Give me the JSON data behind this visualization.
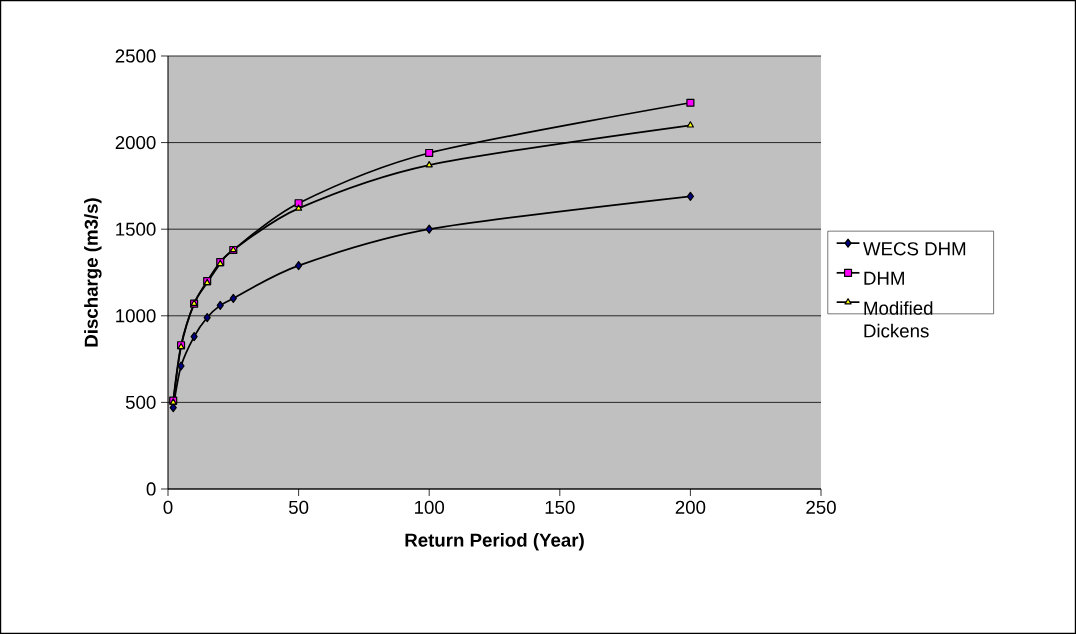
{
  "chart_data": {
    "type": "line",
    "xlabel": "Return Period (Year)",
    "ylabel": "Discharge (m3/s)",
    "xlim": [
      0,
      250
    ],
    "xticks": [
      0,
      50,
      100,
      150,
      200,
      250
    ],
    "ylim": [
      0,
      2500
    ],
    "yticks": [
      0,
      500,
      1000,
      1500,
      2000,
      2500
    ],
    "grid": "y",
    "legend": "right",
    "x": [
      2,
      5,
      10,
      15,
      20,
      25,
      50,
      100,
      200
    ],
    "series": [
      {
        "name": "WECS DHM",
        "color": "#000080",
        "marker": "diamond",
        "values": [
          470,
          710,
          880,
          990,
          1060,
          1100,
          1290,
          1500,
          1690
        ]
      },
      {
        "name": "DHM",
        "color": "#ff00ff",
        "marker": "square",
        "values": [
          510,
          830,
          1070,
          1200,
          1310,
          1380,
          1650,
          1940,
          2230
        ]
      },
      {
        "name": "Modified Dickens",
        "color": "#ffff00",
        "marker": "triangle",
        "values": [
          500,
          820,
          1070,
          1190,
          1300,
          1380,
          1620,
          1870,
          2100
        ]
      }
    ]
  }
}
